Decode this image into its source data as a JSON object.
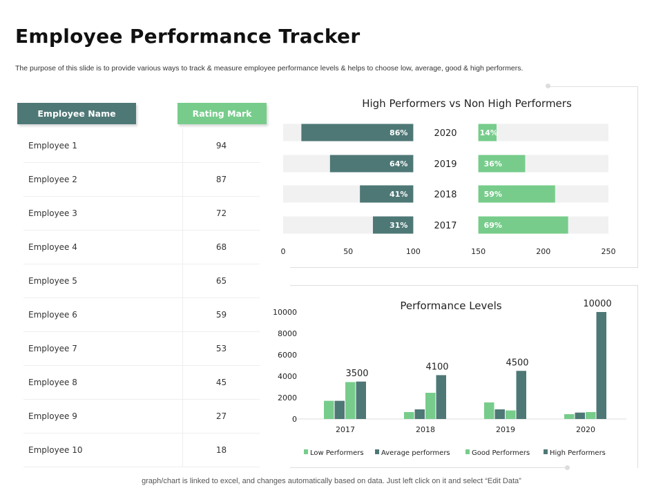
{
  "title": "Employee Performance Tracker",
  "subtitle": "The purpose of this slide is to provide various ways to track & measure employee performance levels & helps to choose low, average, good & high performers.",
  "colors": {
    "teal": "#4E7876",
    "green": "#77CC8B",
    "track": "#F1F1F1"
  },
  "table": {
    "headers": [
      "Employee Name",
      "Rating Mark"
    ],
    "rows": [
      {
        "name": "Employee 1",
        "rating": "94"
      },
      {
        "name": "Employee 2",
        "rating": "87"
      },
      {
        "name": "Employee 3",
        "rating": "72"
      },
      {
        "name": "Employee 4",
        "rating": "68"
      },
      {
        "name": "Employee 5",
        "rating": "65"
      },
      {
        "name": "Employee 6",
        "rating": "59"
      },
      {
        "name": "Employee 7",
        "rating": "53"
      },
      {
        "name": "Employee 8",
        "rating": "45"
      },
      {
        "name": "Employee 9",
        "rating": "27"
      },
      {
        "name": "Employee 10",
        "rating": "18"
      }
    ]
  },
  "chart_data": [
    {
      "type": "bar",
      "title": "High Performers vs Non High Performers",
      "categories": [
        "2020",
        "2019",
        "2018",
        "2017"
      ],
      "series": [
        {
          "name": "High Performers",
          "values": [
            86,
            64,
            41,
            31
          ],
          "labels": [
            "86%",
            "64%",
            "41%",
            "31%"
          ]
        },
        {
          "name": "Non High Performers",
          "values": [
            14,
            36,
            59,
            69
          ],
          "labels": [
            "14%",
            "36%",
            "59%",
            "69%"
          ]
        }
      ],
      "xticks": [
        "0",
        "50",
        "100",
        "150",
        "200",
        "250"
      ],
      "xlim": [
        0,
        250
      ]
    },
    {
      "type": "bar",
      "title": "Performance Levels",
      "categories": [
        "2017",
        "2018",
        "2019",
        "2020"
      ],
      "series": [
        {
          "name": "Low Performers",
          "values": [
            1700,
            650,
            1550,
            450
          ]
        },
        {
          "name": "Average performers",
          "values": [
            1700,
            900,
            900,
            600
          ]
        },
        {
          "name": "Good Performers",
          "values": [
            3450,
            2450,
            800,
            650
          ]
        },
        {
          "name": "High Performers",
          "values": [
            3500,
            4100,
            4500,
            10000
          ]
        }
      ],
      "data_labels": [
        "3500",
        "4100",
        "4500",
        "10000"
      ],
      "yticks": [
        "0",
        "2000",
        "4000",
        "6000",
        "8000",
        "10000"
      ],
      "ylim": [
        0,
        10000
      ],
      "legend": "bottom"
    }
  ],
  "footer": "graph/chart is linked to excel,  and changes automatically based on data. Just left click on it and select “Edit Data”"
}
